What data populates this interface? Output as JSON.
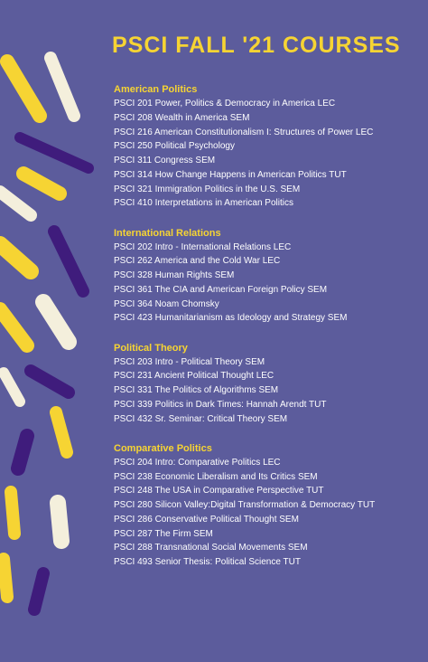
{
  "title": "PSCI FALL '21 COURSES",
  "sections": [
    {
      "heading": "American Politics",
      "courses": [
        "PSCI 201  Power, Politics & Democracy in America LEC",
        "PSCI 208  Wealth in America SEM",
        "PSCI 216  American Constitutionalism I: Structures of Power LEC",
        "PSCI 250  Political Psychology",
        "PSCI 311  Congress SEM",
        "PSCI 314  How Change Happens in American Politics TUT",
        "PSCI 321  Immigration Politics in the U.S. SEM",
        "PSCI 410  Interpretations in American Politics"
      ]
    },
    {
      "heading": "International Relations",
      "courses": [
        "PSCI 202  Intro - International Relations LEC",
        "PSCI 262  America and the Cold War LEC",
        "PSCI 328  Human Rights SEM",
        "PSCI 361  The CIA and American Foreign Policy SEM",
        "PSCI 364  Noam Chomsky",
        "PSCI 423  Humanitarianism as Ideology and Strategy SEM"
      ]
    },
    {
      "heading": "Political Theory",
      "courses": [
        "PSCI 203  Intro - Political Theory SEM",
        "PSCI 231  Ancient Political Thought LEC",
        "PSCI 331  The Politics of Algorithms SEM",
        "PSCI 339  Politics in Dark Times: Hannah Arendt TUT",
        "PSCI 432  Sr. Seminar: Critical Theory SEM"
      ]
    },
    {
      "heading": "Comparative Politics",
      "courses": [
        "PSCI 204  Intro: Comparative Politics LEC",
        "PSCI 238  Economic Liberalism and Its Critics SEM",
        "PSCI 248  The USA in Comparative Perspective TUT",
        "PSCI 280  Silicon Valley:Digital Transformation & Democracy TUT",
        "PSCI 286  Conservative Political Thought SEM",
        "PSCI 287  The Firm SEM",
        "PSCI 288  Transnational Social Movements SEM",
        "PSCI 493  Senior Thesis: Political Science TUT"
      ]
    }
  ]
}
